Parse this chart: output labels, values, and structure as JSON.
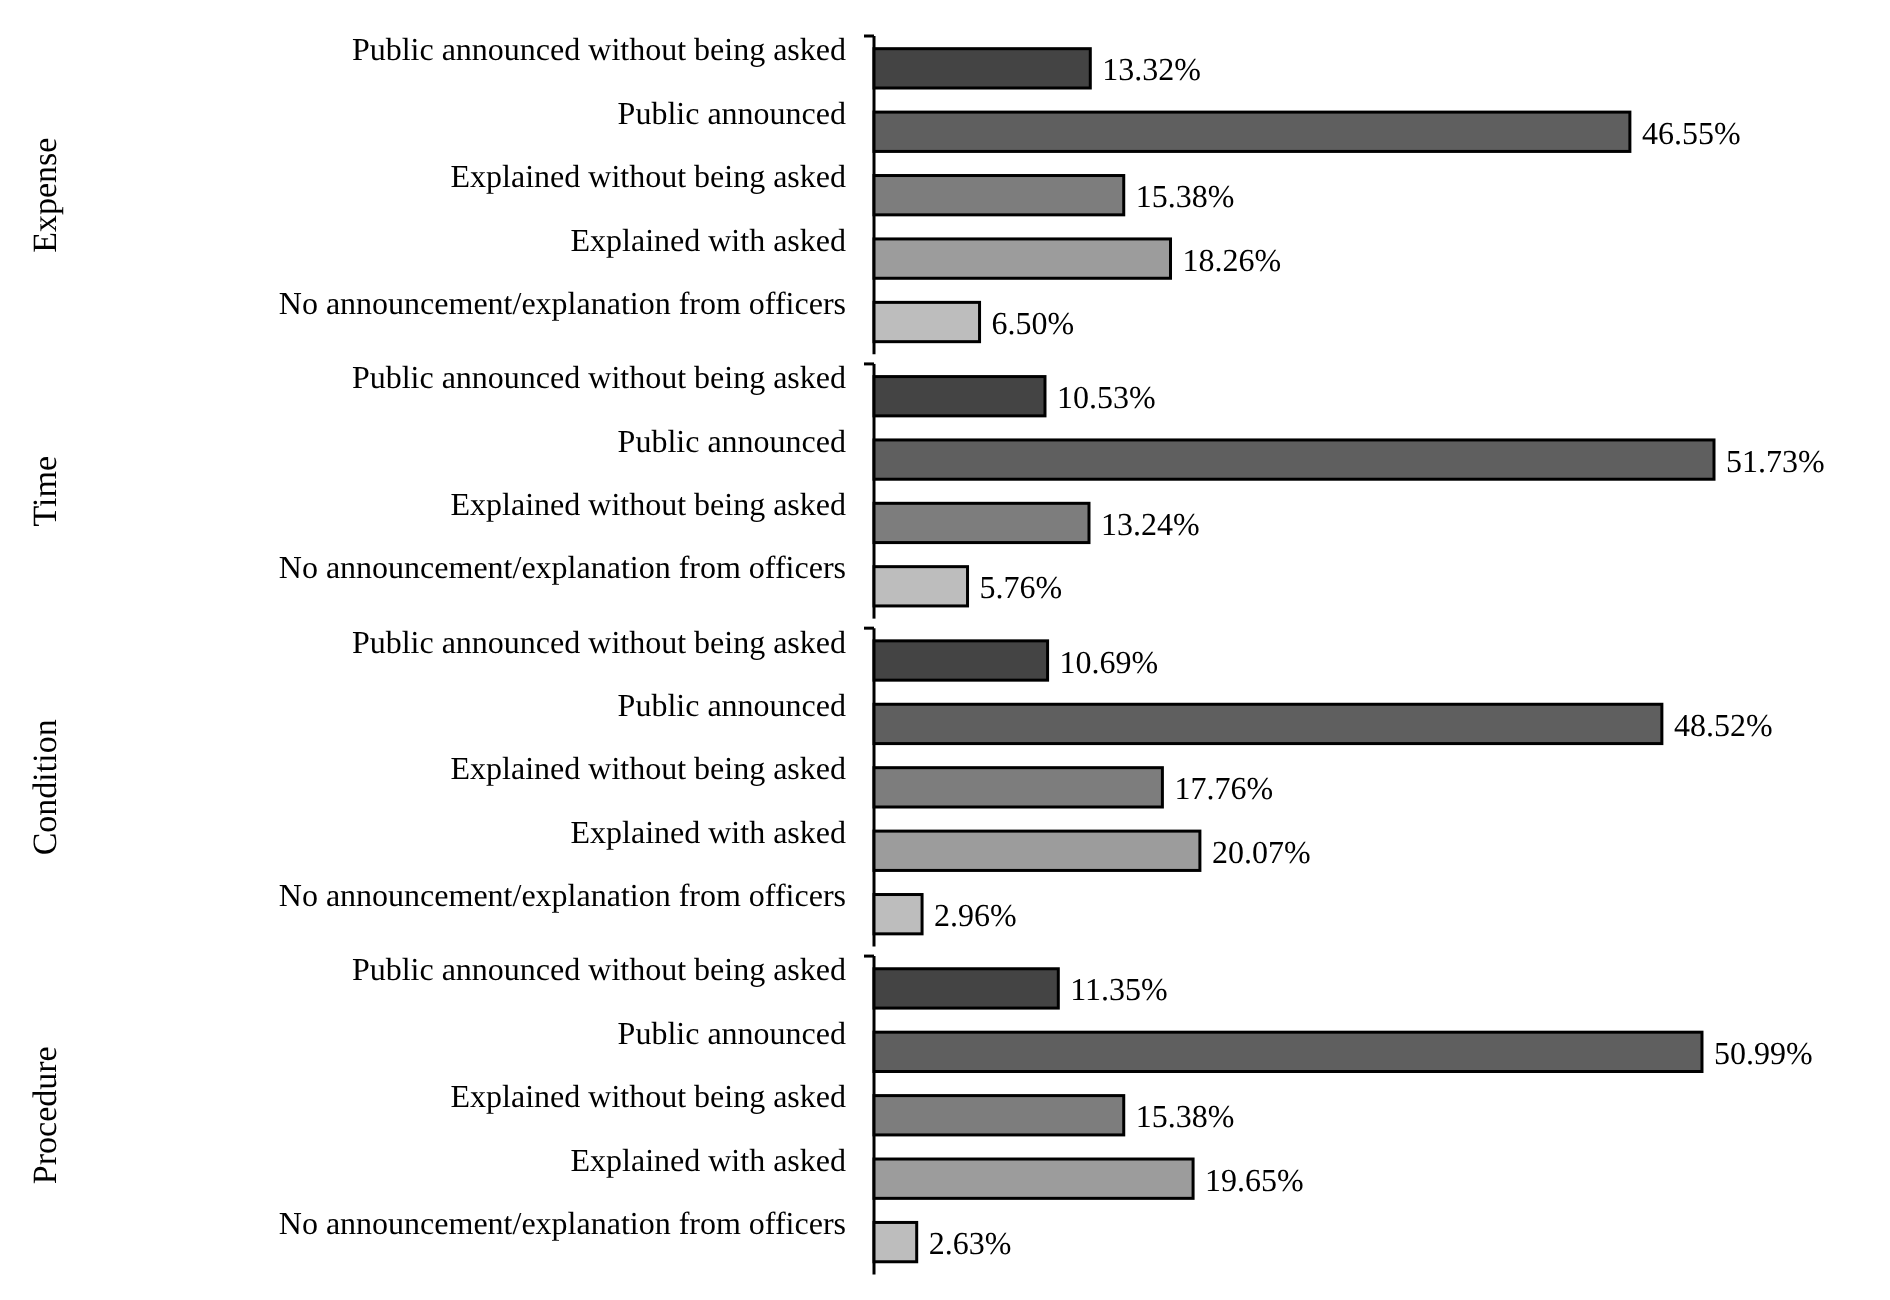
{
  "chart_data": [
    {
      "type": "bar",
      "orientation": "horizontal",
      "ylabel": "Expense",
      "categories": [
        "Public announced without being asked",
        "Public announced",
        "Explained without being asked",
        "Explained with asked",
        "No announcement/explanation from officers"
      ],
      "values": [
        13.32,
        46.55,
        15.38,
        18.26,
        6.5
      ],
      "colors": [
        "#444444",
        "#5f5f5f",
        "#7d7d7d",
        "#9c9c9c",
        "#bdbdbd"
      ],
      "value_labels": [
        "13.32%",
        "46.55%",
        "15.38%",
        "18.26%",
        "6.50%"
      ]
    },
    {
      "type": "bar",
      "orientation": "horizontal",
      "ylabel": "Time",
      "categories": [
        "Public announced without being asked",
        "Public announced",
        "Explained without being asked",
        "No announcement/explanation from officers"
      ],
      "values": [
        10.53,
        51.73,
        13.24,
        5.76
      ],
      "colors": [
        "#444444",
        "#5f5f5f",
        "#7d7d7d",
        "#bdbdbd"
      ],
      "value_labels": [
        "10.53%",
        "51.73%",
        "13.24%",
        "5.76%"
      ]
    },
    {
      "type": "bar",
      "orientation": "horizontal",
      "ylabel": "Condition",
      "categories": [
        "Public announced without being asked",
        "Public announced",
        "Explained without being asked",
        "Explained with asked",
        "No announcement/explanation from officers"
      ],
      "values": [
        10.69,
        48.52,
        17.76,
        20.07,
        2.96
      ],
      "colors": [
        "#444444",
        "#5f5f5f",
        "#7d7d7d",
        "#9c9c9c",
        "#bdbdbd"
      ],
      "value_labels": [
        "10.69%",
        "48.52%",
        "17.76%",
        "20.07%",
        "2.96%"
      ]
    },
    {
      "type": "bar",
      "orientation": "horizontal",
      "ylabel": "Procedure",
      "categories": [
        "Public announced without being asked",
        "Public announced",
        "Explained without being asked",
        "Explained with asked",
        "No announcement/explanation from officers"
      ],
      "values": [
        11.35,
        50.99,
        15.38,
        19.65,
        2.63
      ],
      "colors": [
        "#444444",
        "#5f5f5f",
        "#7d7d7d",
        "#9c9c9c",
        "#bdbdbd"
      ],
      "value_labels": [
        "11.35%",
        "50.99%",
        "15.38%",
        "19.65%",
        "2.63%"
      ]
    }
  ]
}
